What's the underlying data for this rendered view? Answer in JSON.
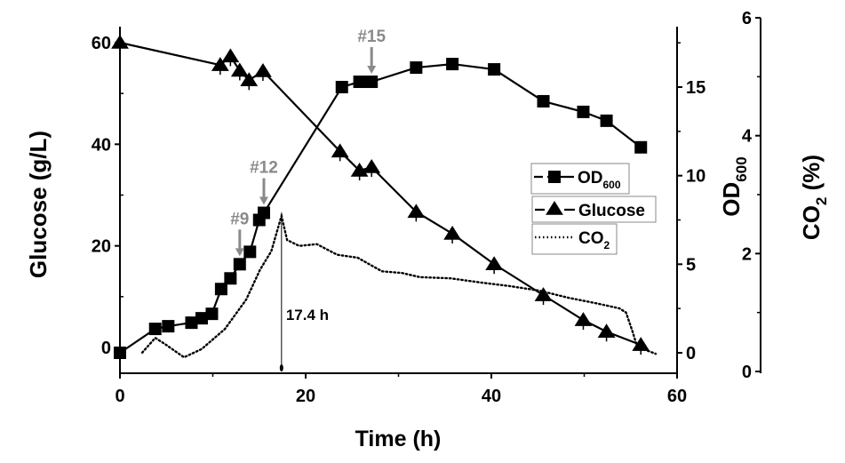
{
  "chart_data": {
    "type": "line",
    "xlabel": "Time (h)",
    "xlim": [
      0,
      60
    ],
    "xticks": [
      "0",
      "20",
      "40",
      "60"
    ],
    "axes": {
      "glucose": {
        "label": "Glucose (g/L)",
        "lim": [
          -4,
          64
        ],
        "ticks": [
          "0",
          "20",
          "40",
          "60"
        ]
      },
      "od": {
        "label_main": "OD",
        "label_sub": "600",
        "lim": [
          -1,
          17.5
        ],
        "ticks": [
          "0",
          "5",
          "10",
          "15"
        ]
      },
      "co2": {
        "label_main": "CO",
        "label_sub": "2",
        "label_unit": " (%)",
        "lim": [
          0,
          6
        ],
        "ticks": [
          "0",
          "2",
          "4",
          "6"
        ]
      }
    },
    "series": [
      {
        "name": "OD600",
        "legend_main": "OD",
        "legend_sub": "600",
        "axis": "od",
        "marker": "square",
        "x": [
          0,
          3.8,
          5.2,
          7.7,
          8.8,
          9.9,
          10.9,
          11.9,
          12.9,
          14.0,
          15.0,
          15.5,
          23.9,
          25.8,
          27.1,
          31.9,
          35.8,
          40.3,
          45.6,
          49.9,
          52.4,
          56.1
        ],
        "y": [
          0,
          1.35,
          1.5,
          1.7,
          1.95,
          2.2,
          3.6,
          4.2,
          5.0,
          5.7,
          7.5,
          7.9,
          15.0,
          15.3,
          15.3,
          16.1,
          16.3,
          16.0,
          14.2,
          13.6,
          13.1,
          11.6
        ]
      },
      {
        "name": "Glucose",
        "legend_main": "Glucose",
        "legend_sub": "",
        "axis": "glucose",
        "marker": "triangle",
        "x": [
          0,
          10.8,
          11.9,
          12.9,
          13.9,
          15.4,
          23.7,
          25.8,
          27.1,
          31.9,
          35.8,
          40.3,
          45.6,
          49.9,
          52.4,
          56.1
        ],
        "y": [
          60,
          55.6,
          57.3,
          54.5,
          52.6,
          54.4,
          38.6,
          34.8,
          35.5,
          26.7,
          22.4,
          16.4,
          10.3,
          5.4,
          3.1,
          0.5
        ]
      },
      {
        "name": "CO2",
        "legend_main": "CO",
        "legend_sub": "2",
        "axis": "co2",
        "marker": "none",
        "x": [
          2.4,
          3.8,
          4.8,
          6.9,
          8.8,
          11.3,
          13.6,
          15.1,
          16.3,
          17.4,
          18.0,
          19.3,
          21.2,
          23.4,
          25.6,
          28.2,
          30.4,
          32.3,
          35.6,
          38.8,
          41.9,
          45.2,
          48.3,
          51.5,
          53.8,
          54.5,
          55.2,
          55.7,
          57.7
        ],
        "y": [
          0.32,
          0.57,
          0.47,
          0.24,
          0.38,
          0.72,
          1.22,
          1.73,
          2.04,
          2.64,
          2.23,
          2.13,
          2.16,
          1.98,
          1.93,
          1.7,
          1.67,
          1.6,
          1.58,
          1.51,
          1.45,
          1.37,
          1.25,
          1.15,
          1.07,
          1.0,
          0.68,
          0.42,
          0.3
        ]
      }
    ],
    "annotations": [
      {
        "text": "#9",
        "x": 12.9,
        "color": "#8a8a8a"
      },
      {
        "text": "#12",
        "x": 15.5,
        "color": "#8a8a8a"
      },
      {
        "text": "#15",
        "x": 27.1,
        "color": "#8a8a8a"
      },
      {
        "text": "17.4 h",
        "x": 17.4
      }
    ],
    "legend_position": "center-right",
    "grid": false
  }
}
